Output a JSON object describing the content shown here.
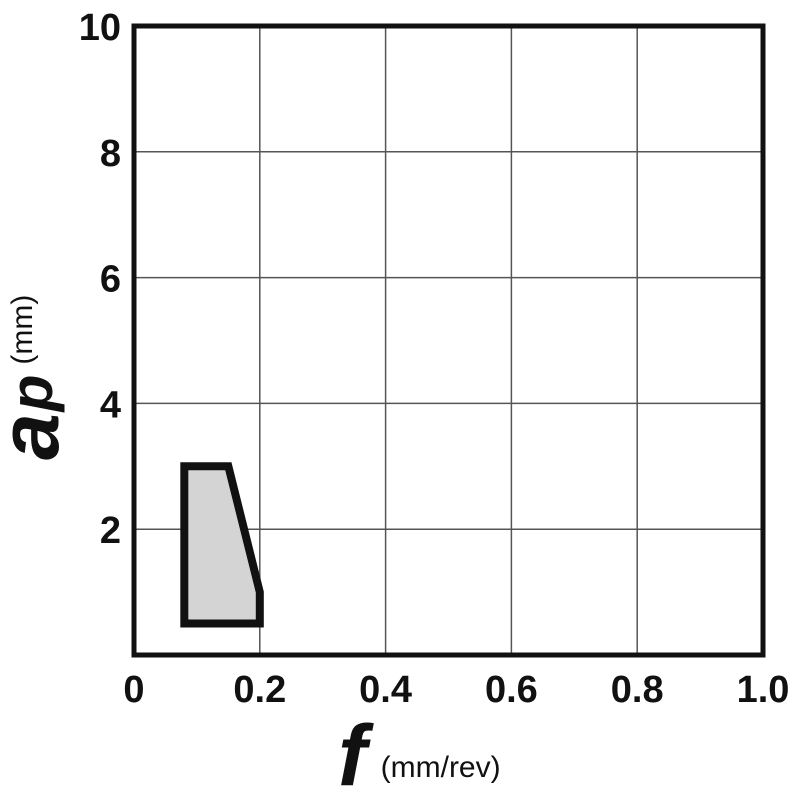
{
  "chart_data": {
    "type": "area",
    "xlabel": "f",
    "xunit": "(mm/rev)",
    "ylabel_main": "a",
    "ylabel_sub": "p",
    "yunit": "(mm)",
    "xlim": [
      0,
      1.0
    ],
    "ylim": [
      0,
      10
    ],
    "xticks": [
      "0",
      "0.2",
      "0.4",
      "0.6",
      "0.8",
      "1.0"
    ],
    "xtick_values": [
      0,
      0.2,
      0.4,
      0.6,
      0.8,
      1.0
    ],
    "yticks": [
      "2",
      "4",
      "6",
      "8",
      "10"
    ],
    "ytick_values": [
      2,
      4,
      6,
      8,
      10
    ],
    "grid": true,
    "region": {
      "x": [
        0.08,
        0.15,
        0.2,
        0.2,
        0.08
      ],
      "y": [
        3.0,
        3.0,
        1.0,
        0.5,
        0.5
      ]
    },
    "colors": {
      "region_fill": "#d4d4d4",
      "region_stroke": "#111111",
      "grid": "#555555",
      "frame": "#111111"
    }
  }
}
